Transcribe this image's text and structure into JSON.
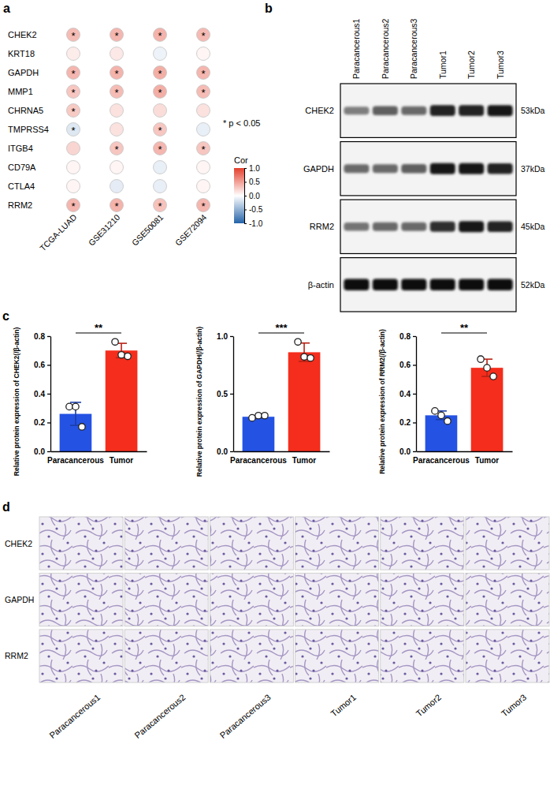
{
  "panel_labels": [
    "a",
    "b",
    "c",
    "d"
  ],
  "chart_data": [
    {
      "type": "heatmap",
      "x": [
        "TCGA-LUAD",
        "GSE31210",
        "GSE50081",
        "GSE72094"
      ],
      "y": [
        "CHEK2",
        "KRT18",
        "GAPDH",
        "MMP1",
        "CHRNA5",
        "TMPRSS4",
        "ITGB4",
        "CD79A",
        "CTLA4",
        "RRM2"
      ],
      "cells": [
        [
          0.35,
          0.38,
          0.4,
          0.36
        ],
        [
          0.1,
          0.12,
          -0.08,
          0.05
        ],
        [
          0.38,
          0.4,
          0.42,
          0.38
        ],
        [
          0.3,
          0.35,
          0.42,
          0.35
        ],
        [
          0.28,
          0.15,
          0.18,
          0.15
        ],
        [
          -0.15,
          0.15,
          0.3,
          -0.1
        ],
        [
          0.22,
          0.3,
          0.38,
          0.3
        ],
        [
          0.05,
          0.05,
          -0.1,
          0.05
        ],
        [
          0.05,
          -0.12,
          -0.1,
          0.05
        ],
        [
          0.38,
          0.4,
          0.32,
          0.38
        ]
      ],
      "significant": [
        [
          true,
          true,
          true,
          true
        ],
        [
          false,
          false,
          false,
          false
        ],
        [
          true,
          true,
          true,
          true
        ],
        [
          true,
          true,
          true,
          true
        ],
        [
          true,
          false,
          false,
          false
        ],
        [
          true,
          false,
          true,
          false
        ],
        [
          false,
          true,
          true,
          true
        ],
        [
          false,
          false,
          false,
          false
        ],
        [
          false,
          false,
          false,
          false
        ],
        [
          true,
          true,
          true,
          true
        ]
      ],
      "significance_marker": "*",
      "significance_label": "* p < 0.05",
      "colorbar": {
        "title": "Cor",
        "range": [
          -1,
          1
        ],
        "ticks": [
          {
            "value": 1,
            "label": "1.0"
          },
          0.5,
          {
            "value": 0,
            "label": "0.0"
          },
          -0.5,
          {
            "value": -1,
            "label": "-1.0"
          }
        ],
        "colors": [
          "#2463a8",
          "#ffffff",
          "#e3402c"
        ]
      }
    },
    {
      "type": "bar",
      "categories": [
        "Paracancerous",
        "Tumor"
      ],
      "values": [
        0.26,
        0.7
      ],
      "errors": [
        0.08,
        0.05
      ],
      "points": [
        [
          0.31,
          0.31,
          0.17
        ],
        [
          0.76,
          0.67,
          0.66
        ]
      ],
      "colors": [
        "#2452e3",
        "#f52d1c"
      ],
      "y_label": "Relative protein expression of CHEK2(/β-actin)",
      "ylim": [
        0,
        0.8
      ],
      "yticks": [
        {
          "value": 0,
          "label": "0.0"
        },
        0.2,
        0.4,
        0.6,
        0.8
      ],
      "significance": "**"
    },
    {
      "type": "bar",
      "categories": [
        "Paracancerous",
        "Tumor"
      ],
      "values": [
        0.3,
        0.86
      ],
      "errors": [
        0.01,
        0.08
      ],
      "points": [
        [
          0.29,
          0.31,
          0.31
        ],
        [
          0.95,
          0.82,
          0.81
        ]
      ],
      "colors": [
        "#2452e3",
        "#f52d1c"
      ],
      "y_label": "Relative protein expression of GAPDH(/β-actin)",
      "ylim": [
        0,
        1
      ],
      "yticks": [
        {
          "value": 0,
          "label": "0.0"
        },
        0.5,
        {
          "value": 1,
          "label": "1.0"
        }
      ],
      "significance": "***"
    },
    {
      "type": "bar",
      "categories": [
        "Paracancerous",
        "Tumor"
      ],
      "values": [
        0.25,
        0.58
      ],
      "errors": [
        0.03,
        0.06
      ],
      "points": [
        [
          0.28,
          0.25,
          0.21
        ],
        [
          0.64,
          0.58,
          0.52
        ]
      ],
      "colors": [
        "#2452e3",
        "#f52d1c"
      ],
      "y_label": "Relative protein expression of RRM2(/β-actin)",
      "ylim": [
        0,
        0.8
      ],
      "yticks": [
        {
          "value": 0,
          "label": "0.0"
        },
        0.2,
        0.4,
        0.6,
        0.8
      ],
      "significance": "**"
    }
  ],
  "blot": {
    "lanes": [
      "Paracancerous1",
      "Paracancerous2",
      "Paracancerous3",
      "Tumor1",
      "Tumor2",
      "Tumor3"
    ],
    "rows": [
      {
        "label": "CHEK2",
        "size": "53kDa",
        "intensity": [
          0.45,
          0.6,
          0.55,
          0.85,
          0.85,
          0.9
        ]
      },
      {
        "label": "GAPDH",
        "size": "37kDa",
        "intensity": [
          0.55,
          0.55,
          0.6,
          0.9,
          0.9,
          0.85
        ]
      },
      {
        "label": "RRM2",
        "size": "45kDa",
        "intensity": [
          0.5,
          0.55,
          0.55,
          0.8,
          0.9,
          0.85
        ]
      },
      {
        "label": "β-actin",
        "size": "52kDa",
        "intensity": [
          0.95,
          0.95,
          0.95,
          0.95,
          0.95,
          0.95
        ]
      }
    ]
  },
  "ihc": {
    "rows": [
      "CHEK2",
      "GAPDH",
      "RRM2"
    ],
    "columns": [
      "Paracancerous1",
      "Paracancerous2",
      "Paracancerous3",
      "Tumor1",
      "Tumor2",
      "Tumor3"
    ]
  }
}
